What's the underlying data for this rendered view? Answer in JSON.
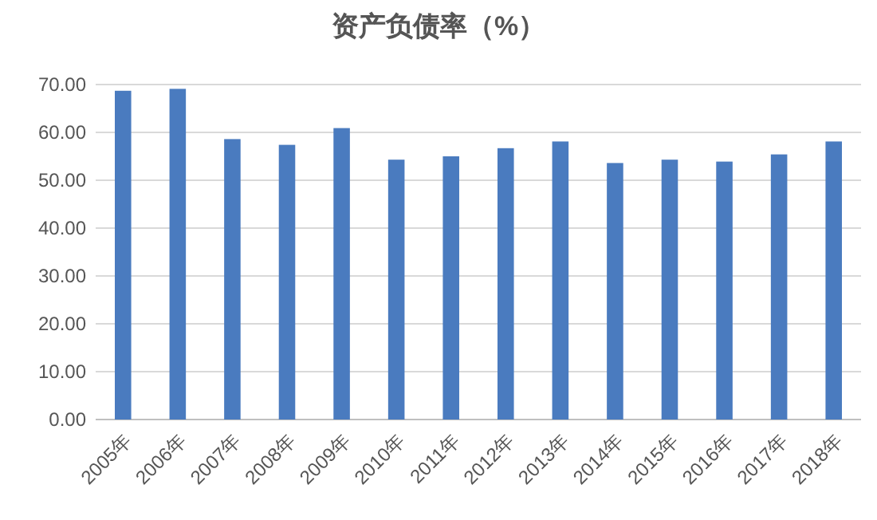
{
  "chart_data": {
    "type": "bar",
    "title": "资产负债率（%）",
    "categories": [
      "2005年",
      "2006年",
      "2007年",
      "2008年",
      "2009年",
      "2010年",
      "2011年",
      "2012年",
      "2013年",
      "2014年",
      "2015年",
      "2016年",
      "2017年",
      "2018年"
    ],
    "values": [
      68.7,
      69.1,
      58.6,
      57.4,
      60.9,
      54.3,
      55.0,
      56.7,
      58.1,
      53.6,
      54.3,
      53.9,
      55.4,
      58.1
    ],
    "color": "#4a7bbf",
    "ylim": [
      0,
      70
    ],
    "yticks": [
      {
        "value": 0,
        "label": "0.00"
      },
      {
        "value": 10,
        "label": "10.00"
      },
      {
        "value": 20,
        "label": "20.00"
      },
      {
        "value": 30,
        "label": "30.00"
      },
      {
        "value": 40,
        "label": "40.00"
      },
      {
        "value": 50,
        "label": "50.00"
      },
      {
        "value": 60,
        "label": "60.00"
      },
      {
        "value": 70,
        "label": "70.00"
      }
    ],
    "grid": "y"
  }
}
